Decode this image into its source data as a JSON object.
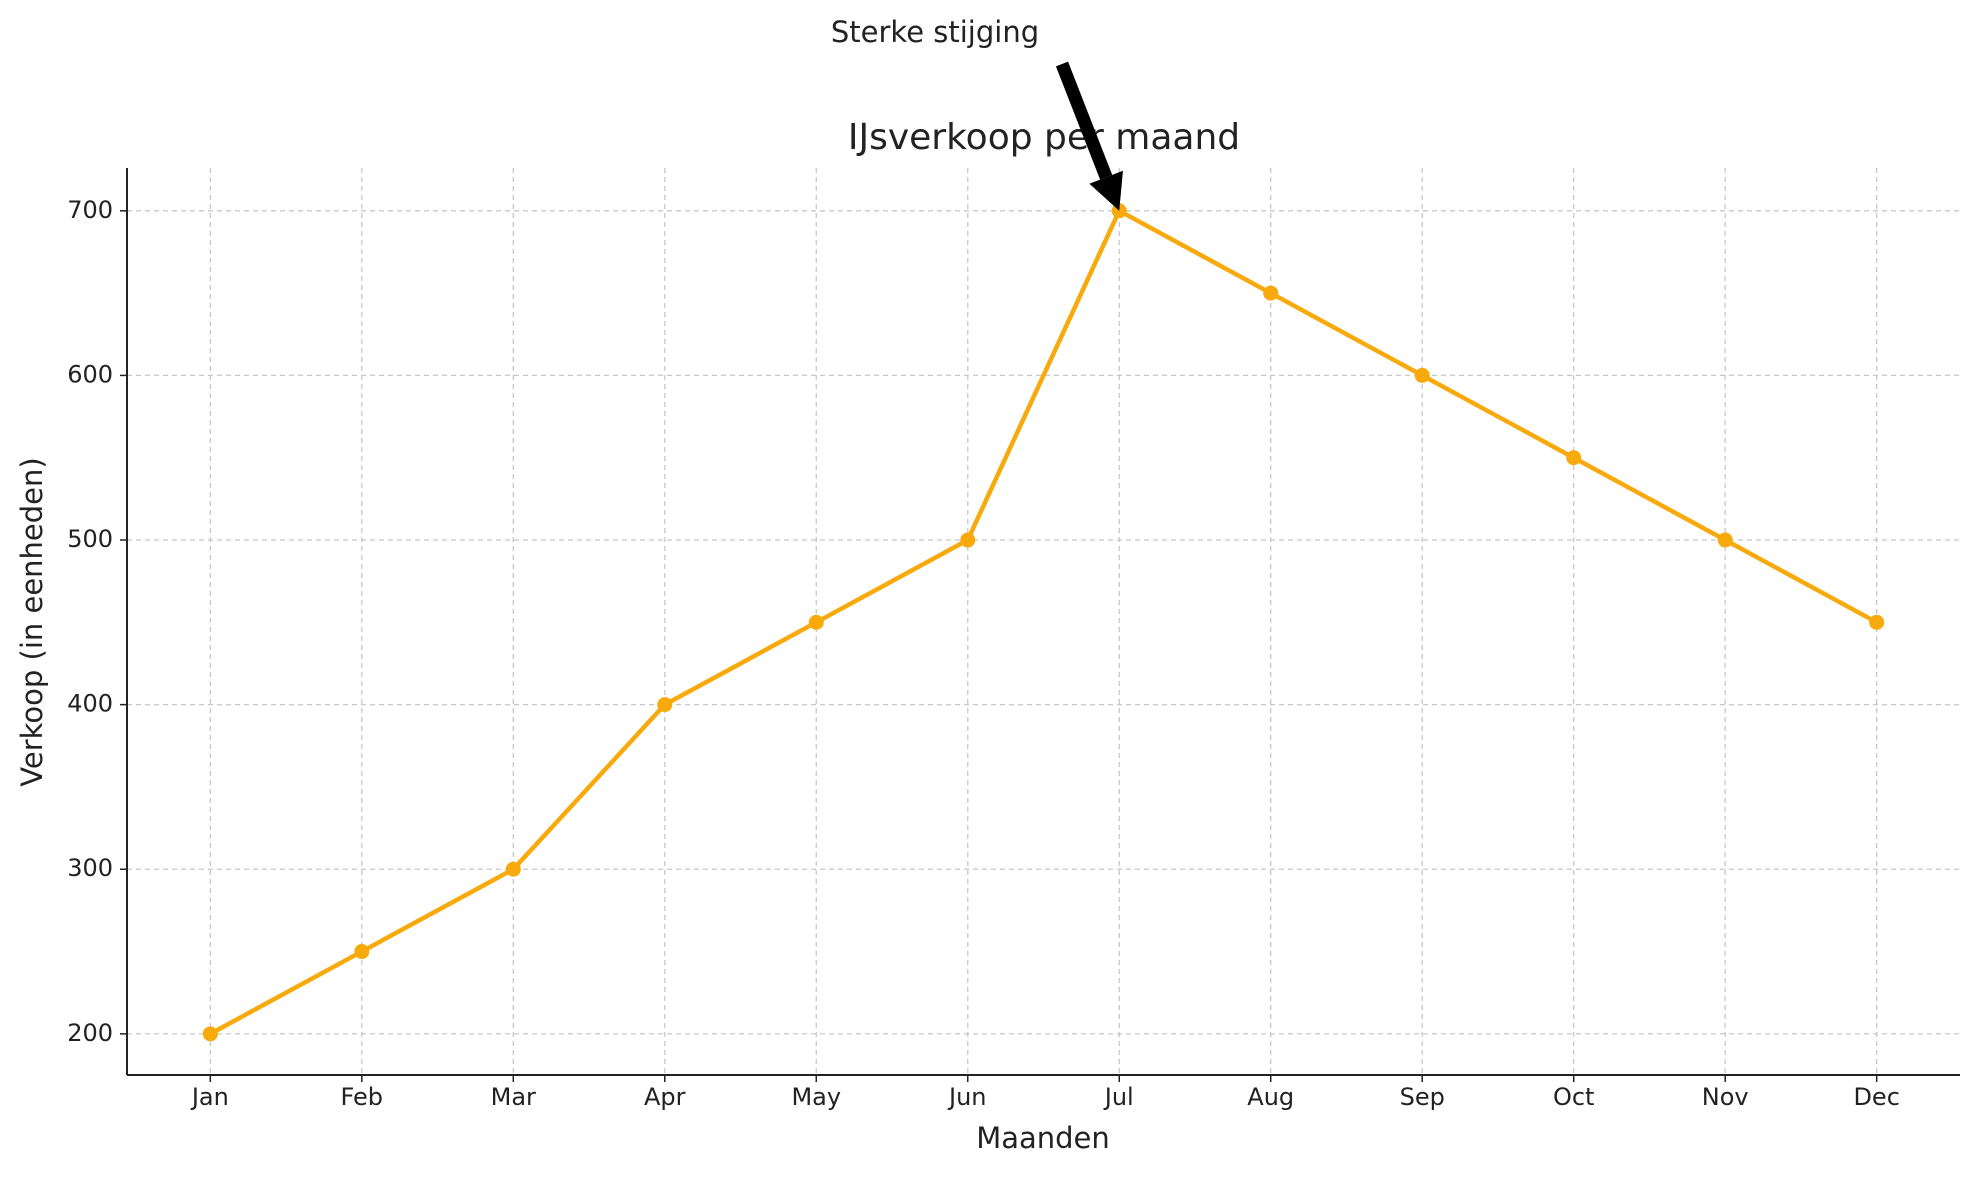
{
  "chart_data": {
    "type": "line",
    "title": "IJsverkoop per maand",
    "x_label": "Maanden",
    "y_label": "Verkoop (in eenheden)",
    "categories": [
      "Jan",
      "Feb",
      "Mar",
      "Apr",
      "May",
      "Jun",
      "Jul",
      "Aug",
      "Sep",
      "Oct",
      "Nov",
      "Dec"
    ],
    "series": [
      {
        "color": "#f8aa0c",
        "values": [
          200,
          250,
          300,
          400,
          450,
          500,
          700,
          650,
          600,
          550,
          500,
          450
        ]
      }
    ],
    "ylim": [
      175,
      726
    ],
    "yticks": [
      200,
      300,
      400,
      500,
      600,
      700
    ],
    "grid": true,
    "annotations": [
      {
        "text": "Sterke stijging"
      }
    ]
  }
}
